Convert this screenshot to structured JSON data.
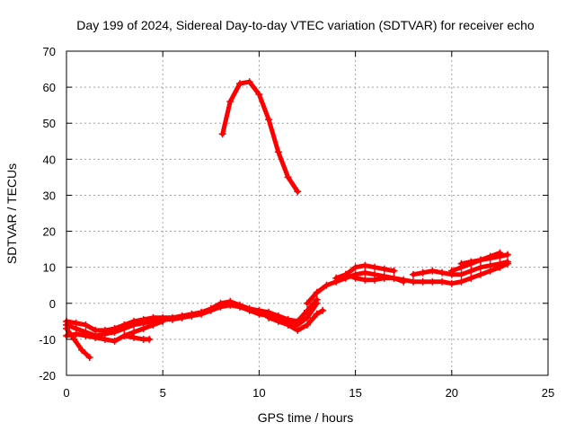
{
  "chart_data": {
    "type": "scatter",
    "title": "Day 199 of 2024, Sidereal Day-to-day VTEC variation (SDTVAR) for receiver echo",
    "xlabel": "GPS time / hours",
    "ylabel": "SDTVAR / TECUs",
    "xlim": [
      0,
      25
    ],
    "ylim": [
      -20,
      70
    ],
    "xticks": [
      0,
      5,
      10,
      15,
      20,
      25
    ],
    "yticks": [
      -20,
      -10,
      0,
      10,
      20,
      30,
      40,
      50,
      60,
      70
    ],
    "grid": true,
    "marker_color": "#ff0000",
    "series": [
      {
        "name": "arc-main",
        "x": [
          8.1,
          8.5,
          9.0,
          9.5,
          10.0,
          10.5,
          11.0,
          11.5,
          12.0
        ],
        "y": [
          47,
          56,
          61,
          61.5,
          58,
          51,
          42,
          35,
          31
        ]
      },
      {
        "name": "arc-a",
        "x": [
          0.0,
          0.5,
          1.0,
          1.5,
          2.0,
          2.5,
          3.0,
          3.5,
          4.0,
          4.5,
          5.0,
          5.5,
          6.0,
          6.5,
          7.0,
          7.5,
          8.0,
          8.5,
          9.0,
          9.5,
          10.0,
          10.5,
          11.0,
          11.5,
          12.0,
          12.5,
          13.0
        ],
        "y": [
          -6,
          -7,
          -8,
          -9,
          -8.5,
          -8,
          -7,
          -6,
          -5.5,
          -5,
          -4.5,
          -4.5,
          -4,
          -3.5,
          -3,
          -2,
          -1,
          -0.5,
          -1,
          -2,
          -3,
          -3.5,
          -4.5,
          -5.5,
          -6,
          -4,
          0
        ]
      },
      {
        "name": "arc-b",
        "x": [
          0.0,
          0.5,
          1.0,
          1.5,
          2.0,
          2.5,
          3.0,
          3.5,
          4.0,
          4.5,
          5.0,
          5.5,
          6.0,
          6.5,
          7.0,
          7.5,
          8.0,
          8.5,
          9.0,
          9.5,
          10.0,
          10.5,
          11.0,
          11.5,
          12.0,
          12.5,
          13.0
        ],
        "y": [
          -5,
          -5.5,
          -6,
          -7.5,
          -7.5,
          -7,
          -6,
          -5,
          -4.5,
          -4,
          -4,
          -4,
          -3.5,
          -3,
          -2.5,
          -1.5,
          0,
          0.5,
          -0.5,
          -1.5,
          -2,
          -2.5,
          -3.5,
          -4.5,
          -5,
          -2,
          1
        ]
      },
      {
        "name": "arc-c",
        "x": [
          0.0,
          0.4,
          0.8,
          1.2
        ],
        "y": [
          -7,
          -10,
          -13,
          -15
        ]
      },
      {
        "name": "arc-d",
        "x": [
          0.0,
          0.5,
          1.0,
          1.5,
          2.0,
          2.5,
          3.0,
          3.5,
          4.0,
          4.5,
          5.0
        ],
        "y": [
          -9,
          -8.5,
          -9,
          -9.5,
          -10,
          -10.5,
          -9,
          -8,
          -7,
          -6,
          -5
        ]
      },
      {
        "name": "arc-e",
        "x": [
          3.0,
          3.5,
          4.0,
          4.3
        ],
        "y": [
          -9,
          -9.5,
          -10,
          -10
        ]
      },
      {
        "name": "arc-f",
        "x": [
          10.5,
          11.0,
          11.5,
          12.0,
          12.5,
          13.0,
          13.3
        ],
        "y": [
          -4,
          -5,
          -6,
          -7.5,
          -6,
          -3,
          -2
        ]
      },
      {
        "name": "arc-g",
        "x": [
          12.5,
          13.0,
          13.5,
          14.0,
          14.5,
          15.0,
          15.5,
          16.0,
          16.5,
          17.0,
          17.5
        ],
        "y": [
          0,
          3,
          5,
          6,
          7,
          8,
          8.5,
          8,
          7.5,
          7,
          6
        ]
      },
      {
        "name": "arc-h",
        "x": [
          14.0,
          14.5,
          15.0,
          15.5,
          16.0,
          16.5,
          17.0
        ],
        "y": [
          7,
          8,
          10,
          10.5,
          10,
          9.5,
          9
        ]
      },
      {
        "name": "arc-i",
        "x": [
          14.5,
          15.0,
          15.5,
          16.0,
          16.5,
          17.0,
          17.5,
          18.0,
          18.5,
          19.0,
          19.5,
          20.0,
          20.5,
          21.0,
          21.5,
          22.0,
          22.5,
          22.9
        ],
        "y": [
          8,
          7,
          6.5,
          6.5,
          7,
          7,
          6.5,
          6,
          6,
          6,
          6,
          5.5,
          6,
          7,
          8,
          9,
          10,
          11
        ]
      },
      {
        "name": "arc-j",
        "x": [
          18.0,
          18.5,
          19.0,
          19.5,
          20.0,
          20.5,
          21.0,
          21.5,
          22.0,
          22.5,
          22.9
        ],
        "y": [
          8,
          8.5,
          9,
          8.5,
          8,
          8,
          9,
          10,
          10.5,
          11,
          11.5
        ]
      },
      {
        "name": "arc-k",
        "x": [
          20.0,
          20.5,
          21.0,
          21.5,
          22.0,
          22.5,
          22.9
        ],
        "y": [
          9,
          10,
          11,
          12,
          12.5,
          13,
          13.5
        ]
      },
      {
        "name": "arc-l",
        "x": [
          20.5,
          21.0,
          21.5,
          22.0,
          22.5
        ],
        "y": [
          11,
          11.5,
          12,
          13,
          14
        ]
      }
    ]
  }
}
